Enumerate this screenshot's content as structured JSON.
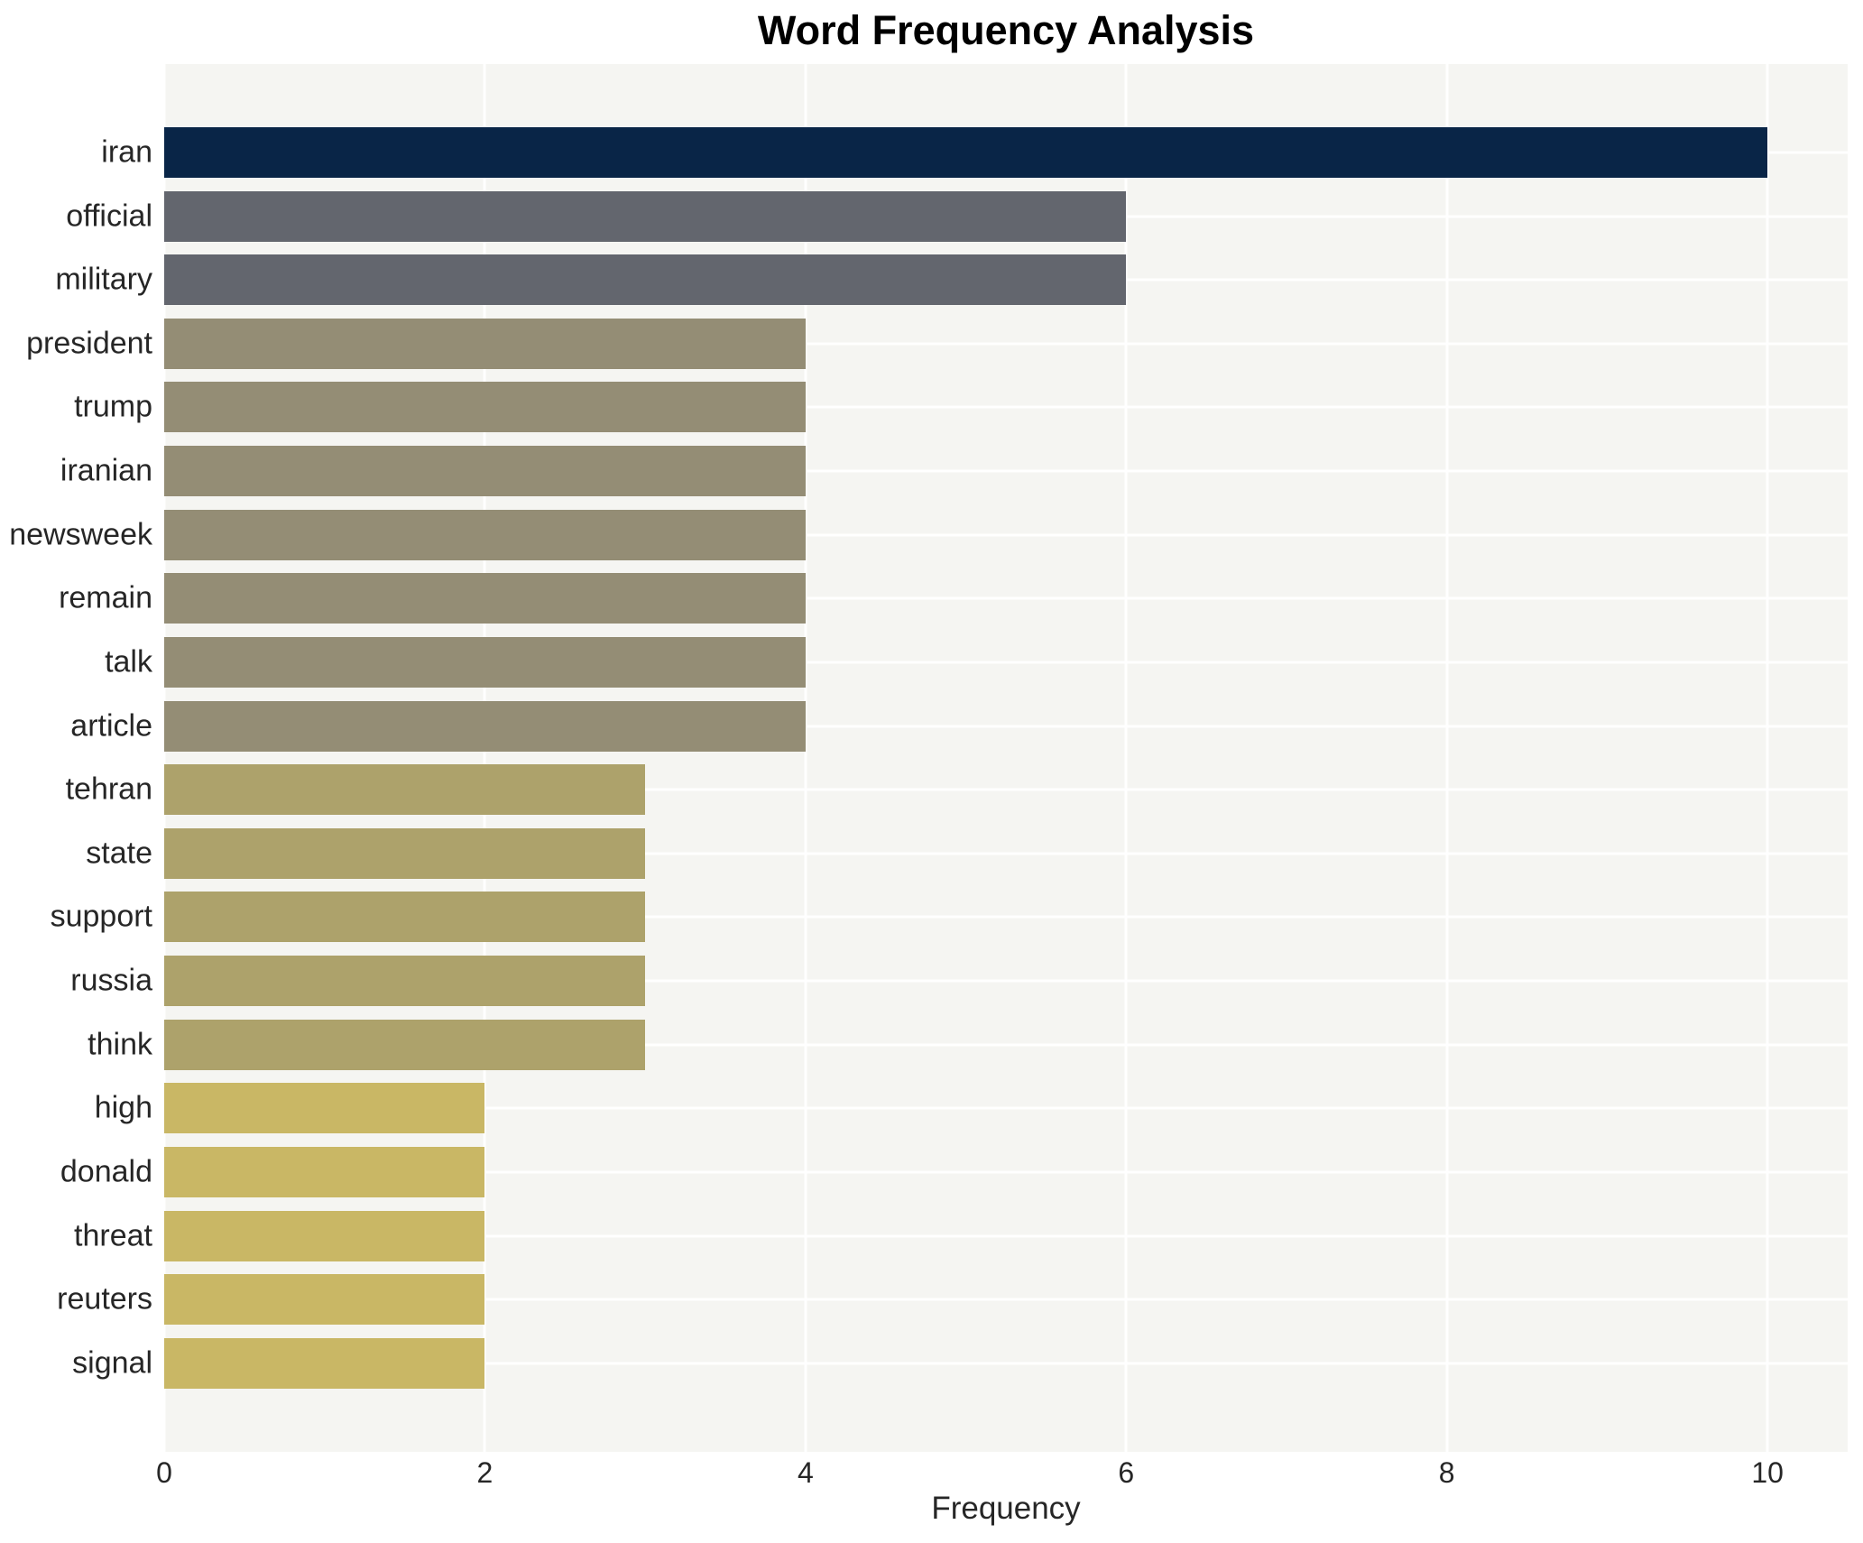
{
  "chart_data": {
    "type": "bar",
    "orientation": "horizontal",
    "title": "Word Frequency Analysis",
    "xlabel": "Frequency",
    "ylabel": "",
    "categories": [
      "iran",
      "official",
      "military",
      "president",
      "trump",
      "iranian",
      "newsweek",
      "remain",
      "talk",
      "article",
      "tehran",
      "state",
      "support",
      "russia",
      "think",
      "high",
      "donald",
      "threat",
      "reuters",
      "signal"
    ],
    "values": [
      10,
      6,
      6,
      4,
      4,
      4,
      4,
      4,
      4,
      4,
      3,
      3,
      3,
      3,
      3,
      2,
      2,
      2,
      2,
      2
    ],
    "bar_colors": [
      "#092547",
      "#63666e",
      "#63666e",
      "#948d75",
      "#948d75",
      "#948d75",
      "#948d75",
      "#948d75",
      "#948d75",
      "#948d75",
      "#ada26b",
      "#ada26b",
      "#ada26b",
      "#ada26b",
      "#ada26b",
      "#c9b765",
      "#c9b765",
      "#c9b765",
      "#c9b765",
      "#c9b765"
    ],
    "xticks": [
      0,
      2,
      4,
      6,
      8,
      10
    ],
    "xlim": [
      0,
      10.5
    ],
    "grid": true,
    "legend": false
  },
  "style": {
    "plot_bg": "#f5f5f2",
    "grid_color": "#ffffff",
    "text_color": "#262626",
    "title_color": "#000000"
  }
}
